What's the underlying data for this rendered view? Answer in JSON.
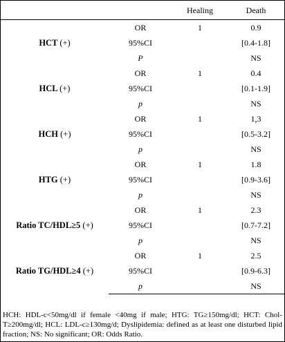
{
  "header": {
    "col_label": "",
    "col_stat": "",
    "col_healing": "Healing",
    "col_death": "Death"
  },
  "groups": [
    {
      "label": "HCT",
      "sign": "(+)",
      "rows": [
        {
          "stat": "OR",
          "italic": false,
          "healing": "1",
          "death": "0.9"
        },
        {
          "stat": "95%CI",
          "italic": false,
          "healing": "",
          "death": "[0.4-1.8]"
        },
        {
          "stat": "P",
          "italic": true,
          "healing": "",
          "death": "NS"
        }
      ]
    },
    {
      "label": "HCL",
      "sign": "(+)",
      "rows": [
        {
          "stat": "OR",
          "italic": false,
          "healing": "1",
          "death": "0.4"
        },
        {
          "stat": "95%CI",
          "italic": false,
          "healing": "",
          "death": "[0.1-1.9]"
        },
        {
          "stat": "p",
          "italic": true,
          "healing": "",
          "death": "NS"
        }
      ]
    },
    {
      "label": "HCH",
      "sign": "(+)",
      "rows": [
        {
          "stat": "OR",
          "italic": false,
          "healing": "1",
          "death": "1,3"
        },
        {
          "stat": "95%CI",
          "italic": false,
          "healing": "",
          "death": "[0.5-3.2]"
        },
        {
          "stat": "p",
          "italic": true,
          "healing": "",
          "death": "NS"
        }
      ]
    },
    {
      "label": "HTG",
      "sign": "(+)",
      "rows": [
        {
          "stat": "OR",
          "italic": false,
          "healing": "1",
          "death": "1.8"
        },
        {
          "stat": "95%CI",
          "italic": false,
          "healing": "",
          "death": "[0.9-3.6]"
        },
        {
          "stat": "p",
          "italic": true,
          "healing": "",
          "death": "NS"
        }
      ]
    },
    {
      "label": "Ratio TC/HDL≥5",
      "sign": "(+)",
      "rows": [
        {
          "stat": "OR",
          "italic": false,
          "healing": "1",
          "death": "2.3"
        },
        {
          "stat": "95%CI",
          "italic": false,
          "healing": "",
          "death": "[0.7-7.2]"
        },
        {
          "stat": "p",
          "italic": true,
          "healing": "",
          "death": "NS"
        }
      ]
    },
    {
      "label": "Ratio TG/HDL≥4",
      "sign": "(+)",
      "rows": [
        {
          "stat": "OR",
          "italic": false,
          "healing": "1",
          "death": "2.5"
        },
        {
          "stat": "95%CI",
          "italic": false,
          "healing": "",
          "death": "[0.9-6.3]"
        },
        {
          "stat": "p",
          "italic": true,
          "healing": "",
          "death": "NS"
        }
      ]
    }
  ],
  "footnote": "HCH: HDL-c<50mg/dl if female <40mg if male; HTG: TG≥150mg/dl; HCT: Chol-T≥200mg/dl; HCL: LDL-c≥130mg/d; Dyslipidemia: defined as at least one disturbed lipid fraction; NS: No significant; OR: Odds Ratio."
}
